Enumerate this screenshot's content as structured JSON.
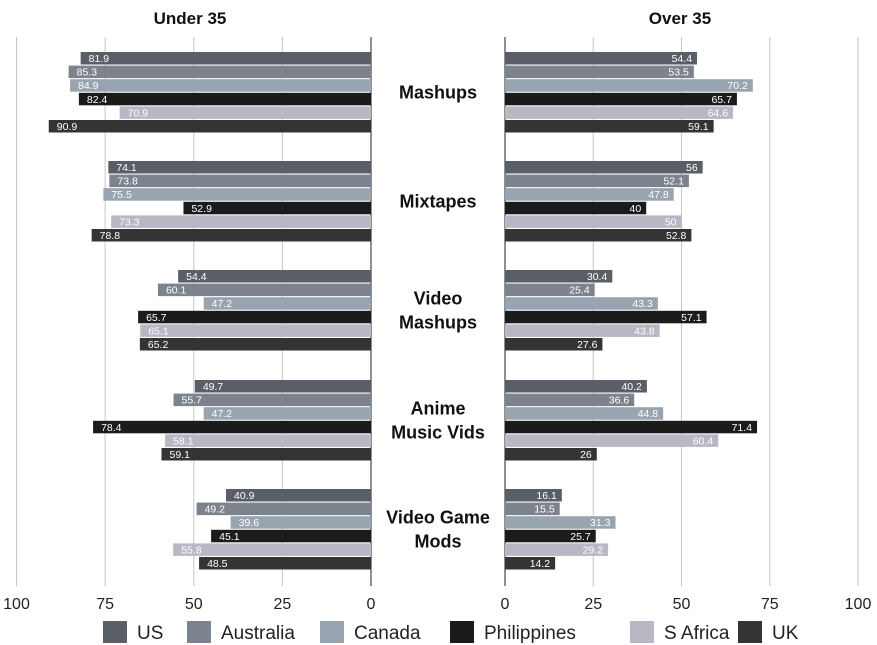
{
  "chart_data": [
    {
      "type": "bar",
      "orientation": "horizontal",
      "title": "Under 35",
      "direction": "reversed",
      "xlim": [
        0,
        100
      ],
      "x_ticks": [
        "100",
        "75",
        "50",
        "25",
        "0"
      ],
      "categories": [
        "Mashups",
        "Mixtapes",
        "Video Mashups",
        "Anime Music Vids",
        "Video Game Mods"
      ],
      "category_labels": [
        [
          "Mashups"
        ],
        [
          "Mixtapes"
        ],
        [
          "Video",
          "Mashups"
        ],
        [
          "Anime",
          "Music Vids"
        ],
        [
          "Video Game",
          "Mods"
        ]
      ],
      "series": [
        {
          "name": "US",
          "values": [
            81.9,
            74.1,
            54.4,
            49.7,
            40.9
          ]
        },
        {
          "name": "Australia",
          "values": [
            85.3,
            73.8,
            60.1,
            55.7,
            49.2
          ]
        },
        {
          "name": "Canada",
          "values": [
            84.9,
            75.5,
            47.2,
            47.2,
            39.6
          ]
        },
        {
          "name": "Philippines",
          "values": [
            82.4,
            52.9,
            65.7,
            78.4,
            45.1
          ]
        },
        {
          "name": "S Africa",
          "values": [
            70.9,
            73.3,
            65.1,
            58.1,
            55.8
          ]
        },
        {
          "name": "UK",
          "values": [
            90.9,
            78.8,
            65.2,
            59.1,
            48.5
          ]
        }
      ],
      "grid": true,
      "legend": "bottom"
    },
    {
      "type": "bar",
      "orientation": "horizontal",
      "title": "Over 35",
      "xlim": [
        0,
        100
      ],
      "x_ticks": [
        "0",
        "25",
        "50",
        "75",
        "100"
      ],
      "categories": [
        "Mashups",
        "Mixtapes",
        "Video Mashups",
        "Anime Music Vids",
        "Video Game Mods"
      ],
      "series": [
        {
          "name": "US",
          "values": [
            54.4,
            56,
            30.4,
            40.2,
            16.1
          ]
        },
        {
          "name": "Australia",
          "values": [
            53.5,
            52.1,
            25.4,
            36.6,
            15.5
          ]
        },
        {
          "name": "Canada",
          "values": [
            70.2,
            47.8,
            43.3,
            44.8,
            31.3
          ]
        },
        {
          "name": "Philippines",
          "values": [
            65.7,
            40,
            57.1,
            71.4,
            25.7
          ]
        },
        {
          "name": "S Africa",
          "values": [
            64.6,
            50,
            43.8,
            60.4,
            29.2
          ]
        },
        {
          "name": "UK",
          "values": [
            59.1,
            52.8,
            27.6,
            26,
            14.2
          ]
        }
      ],
      "grid": true,
      "legend": "bottom"
    }
  ],
  "colors": {
    "US": "#5a5e66",
    "Australia": "#7d838d",
    "Canada": "#98a4b0",
    "Philippines": "#1b1b1b",
    "S Africa": "#b8b7c4",
    "UK": "#343434",
    "grid": "#c6c6c6",
    "axis": "#555555"
  },
  "legend": [
    "US",
    "Australia",
    "Canada",
    "Philippines",
    "S Africa",
    "UK"
  ]
}
